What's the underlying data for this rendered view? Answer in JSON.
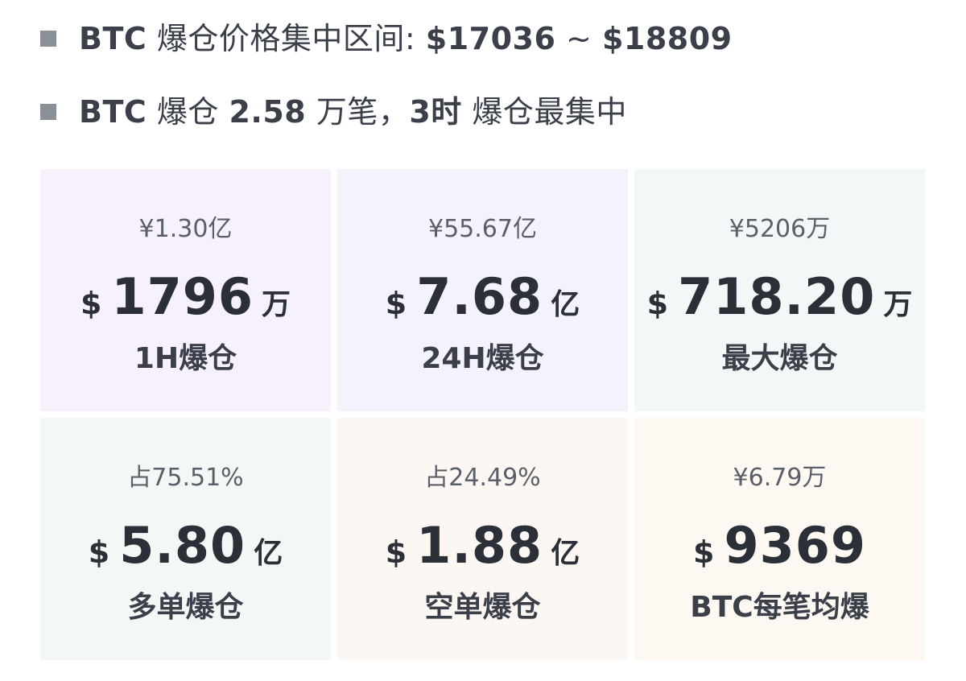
{
  "summary": {
    "line1": {
      "coin": "BTC",
      "text": "爆仓价格集中区间:",
      "range_low": "$17036",
      "sep": "~",
      "range_high": "$18809"
    },
    "line2": {
      "coin": "BTC",
      "text1": "爆仓",
      "count": "2.58",
      "text2": "万笔，",
      "hour": "3时",
      "text3": "爆仓最集中"
    }
  },
  "stats": [
    {
      "cny": "¥1.30亿",
      "dollar": "$",
      "value": "1796",
      "unit": "万",
      "label": "1H爆仓"
    },
    {
      "cny": "¥55.67亿",
      "dollar": "$",
      "value": "7.68",
      "unit": "亿",
      "label": "24H爆仓"
    },
    {
      "cny": "¥5206万",
      "dollar": "$",
      "value": "718.20",
      "unit": "万",
      "label": "最大爆仓"
    },
    {
      "cny": "占75.51%",
      "dollar": "$",
      "value": "5.80",
      "unit": "亿",
      "label": "多单爆仓"
    },
    {
      "cny": "占24.49%",
      "dollar": "$",
      "value": "1.88",
      "unit": "亿",
      "label": "空单爆仓"
    },
    {
      "cny": "¥6.79万",
      "dollar": "$",
      "value": "9369",
      "unit": "",
      "label": "BTC每笔均爆"
    }
  ],
  "colors": {
    "bullet": "#8a9098",
    "text_dark": "#2b2f38",
    "cell_1h": "#f6f1fd",
    "cell_24h": "#f4f2fd",
    "cell_max": "#f2f7f7",
    "cell_long": "#f3f8f6",
    "cell_short": "#fdf7f4",
    "cell_avg": "#fdf8f2"
  }
}
